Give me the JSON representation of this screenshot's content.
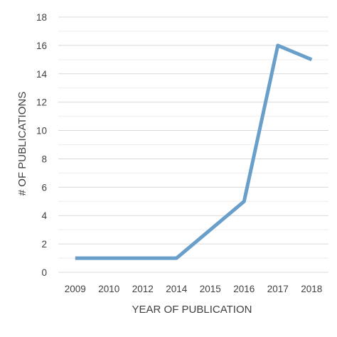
{
  "chart_data": {
    "type": "line",
    "title": "",
    "xlabel": "YEAR OF PUBLICATION",
    "ylabel": "# OF PUBLICATIONS",
    "categories": [
      "2009",
      "2010",
      "2012",
      "2014",
      "2015",
      "2016",
      "2017",
      "2018"
    ],
    "series": [
      {
        "values": [
          1,
          1,
          1,
          1,
          3,
          5,
          16,
          15
        ],
        "color": "#6a9fca"
      }
    ],
    "ylim": [
      0,
      18
    ],
    "yticks": [
      "0",
      "2",
      "4",
      "6",
      "8",
      "10",
      "12",
      "14",
      "16",
      "18"
    ],
    "grid": true,
    "minor_grid": true,
    "legend": "none",
    "colors": {
      "grid_major": "#d9d9d9",
      "grid_minor": "#eeeeee",
      "line": "#6a9fca",
      "text": "#404040"
    }
  }
}
